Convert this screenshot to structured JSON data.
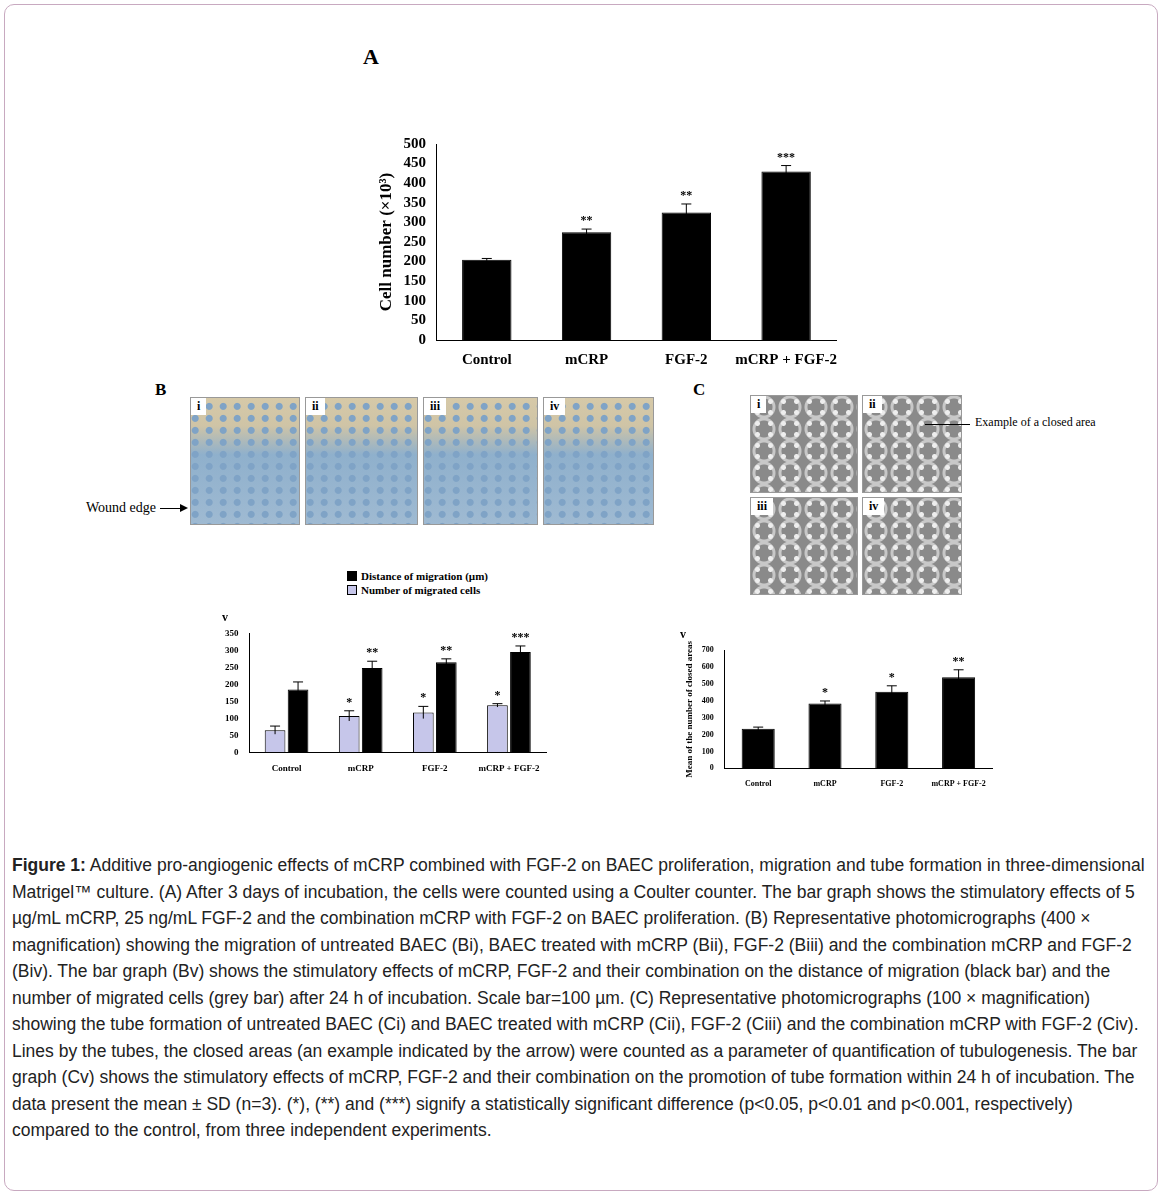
{
  "panels": {
    "A": "A",
    "B": "B",
    "C": "C"
  },
  "photos": {
    "B": {
      "labels": [
        "i",
        "ii",
        "iii",
        "iv"
      ],
      "annotation": "Wound edge"
    },
    "C": {
      "labels": [
        "i",
        "ii",
        "iii",
        "iv"
      ],
      "annotation": "Example of a closed area"
    }
  },
  "chart_data": [
    {
      "type": "bar",
      "y_label": "Cell number (×10³)",
      "categories": [
        "Control",
        "mCRP",
        "FGF-2",
        "mCRP + FGF-2"
      ],
      "values": [
        205,
        275,
        325,
        430
      ],
      "errors": [
        3,
        8,
        22,
        15
      ],
      "significance": [
        null,
        "**",
        "**",
        "***"
      ],
      "color": "#000000",
      "ylim": [
        0,
        500
      ],
      "yticks": [
        0,
        50,
        100,
        150,
        200,
        250,
        300,
        350,
        400,
        450,
        500
      ],
      "grid": false
    },
    {
      "type": "bar",
      "title": "v",
      "categories": [
        "Control",
        "mCRP",
        "FGF-2",
        "mCRP + FGF-2"
      ],
      "series": [
        {
          "name": "Distance of migration (µm)",
          "color": "#000000",
          "values": [
            185,
            248,
            265,
            295
          ],
          "errors": [
            22,
            20,
            10,
            18
          ],
          "significance": [
            null,
            "**",
            "**",
            "***"
          ]
        },
        {
          "name": "Number of migrated cells",
          "color": "#c6c6ea",
          "values": [
            65,
            107,
            117,
            138
          ],
          "errors": [
            12,
            15,
            18,
            5
          ],
          "significance": [
            null,
            "*",
            "*",
            "*"
          ]
        }
      ],
      "legend": "top",
      "ylim": [
        0,
        350
      ],
      "yticks": [
        0,
        50,
        100,
        150,
        200,
        250,
        300,
        350
      ],
      "grid": false
    },
    {
      "type": "bar",
      "title": "v",
      "y_label": "Mean of the number of closed areas",
      "categories": [
        "Control",
        "mCRP",
        "FGF-2",
        "mCRP + FGF-2"
      ],
      "values": [
        235,
        385,
        455,
        540
      ],
      "errors": [
        10,
        15,
        35,
        45
      ],
      "significance": [
        null,
        "*",
        "*",
        "**"
      ],
      "color": "#000000",
      "ylim": [
        0,
        700
      ],
      "yticks": [
        0,
        100,
        200,
        300,
        400,
        500,
        600,
        700
      ],
      "grid": false
    }
  ],
  "caption": {
    "label": "Figure 1:",
    "text": "Additive pro-angiogenic effects of mCRP combined with FGF-2 on BAEC proliferation, migration and tube formation in three-dimensional Matrigel™ culture. (A) After 3 days of incubation, the cells were counted using a Coulter counter. The bar graph shows the stimulatory effects of 5 µg/mL mCRP, 25 ng/mL FGF-2 and the combination mCRP with FGF-2 on BAEC proliferation. (B) Representative photomicrographs (400 × magnification) showing the migration of untreated BAEC (Bi), BAEC treated with mCRP (Bii), FGF-2 (Biii) and the combination mCRP and FGF-2 (Biv). The bar graph (Bv) shows the stimulatory effects of mCRP, FGF-2 and their combination on the distance of migration (black bar) and the number of migrated cells (grey bar) after 24 h of incubation. Scale bar=100 µm. (C) Representative photomicrographs (100 × magnification) showing the tube formation of untreated BAEC (Ci) and BAEC treated with mCRP (Cii), FGF-2 (Ciii) and the combination mCRP with FGF-2 (Civ). Lines by the tubes, the closed areas (an example indicated by the arrow) were counted as a parameter of quantification of tubulogenesis. The bar graph (Cv) shows the stimulatory effects of mCRP, FGF-2 and their combination on the promotion of tube formation within 24 h of incubation. The data present the mean ± SD (n=3). (*), (**) and (***) signify a statistically significant difference (p<0.05, p<0.01 and p<0.001, respectively) compared to the control, from three independent experiments."
  }
}
